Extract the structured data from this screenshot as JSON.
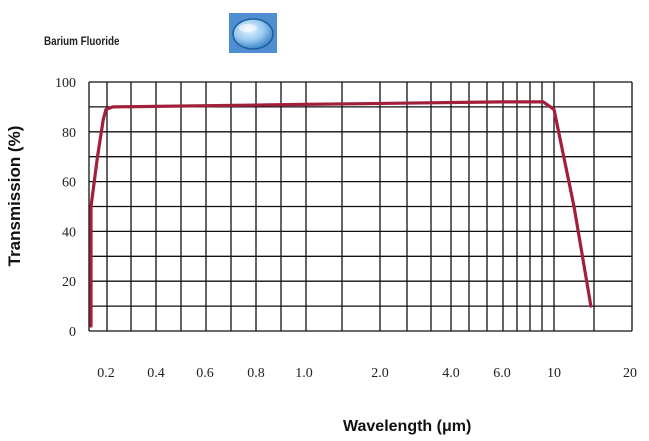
{
  "chart_data": {
    "type": "line",
    "title": "Barium Fluoride",
    "xlabel": "Wavelength (μm)",
    "ylabel": "Transmission (%)",
    "x_tick_labels": [
      "0.2",
      "0.4",
      "0.6",
      "0.8",
      "1.0",
      "2.0",
      "4.0",
      "6.0",
      "10",
      "20"
    ],
    "y_tick_labels": [
      "0",
      "20",
      "40",
      "60",
      "80",
      "100"
    ],
    "ylim": [
      0,
      100
    ],
    "grid": true,
    "legend": "none",
    "series": [
      {
        "color": "#a21f3c",
        "points": [
          {
            "x": "0.15",
            "y": 2
          },
          {
            "x": "0.15",
            "y": 50
          },
          {
            "x": "0.17",
            "y": 70
          },
          {
            "x": "0.19",
            "y": 85
          },
          {
            "x": "0.2",
            "y": 89
          },
          {
            "x": "0.22",
            "y": 90
          },
          {
            "x": "1.0",
            "y": 91
          },
          {
            "x": "6.0",
            "y": 92
          },
          {
            "x": "9",
            "y": 92
          },
          {
            "x": "10",
            "y": 89
          },
          {
            "x": "12",
            "y": 50
          },
          {
            "x": "14",
            "y": 10
          }
        ]
      }
    ],
    "lens_icon": "bariumfluoride-window-icon"
  }
}
